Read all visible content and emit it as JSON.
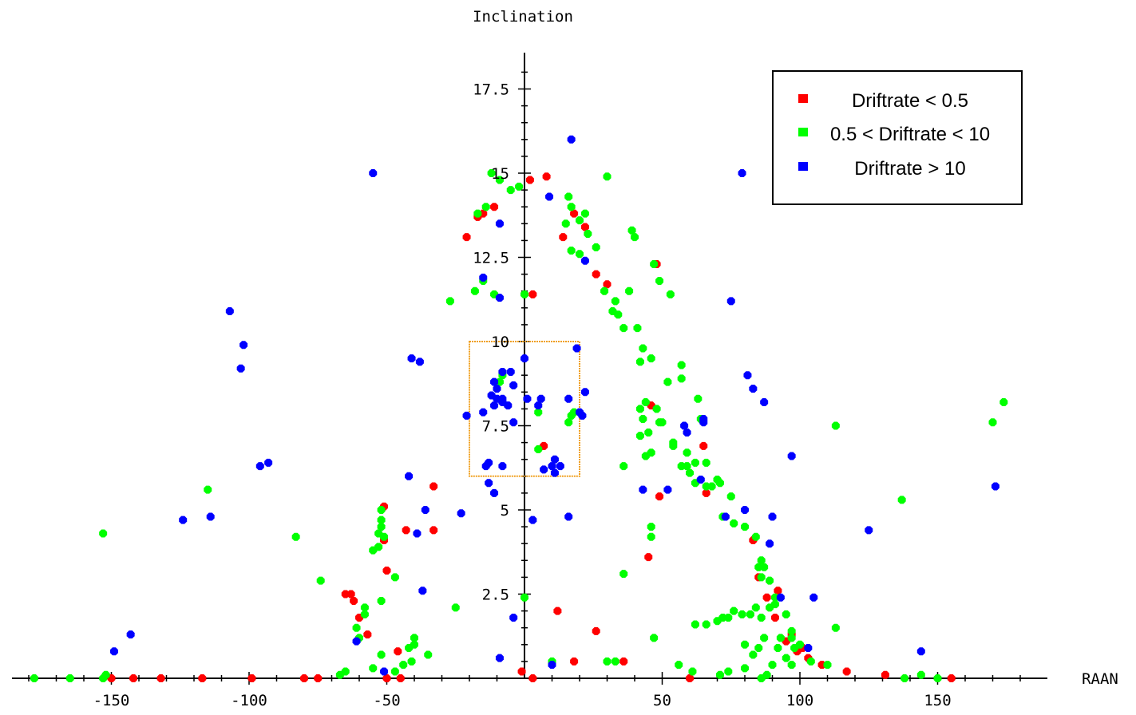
{
  "chart_data": {
    "type": "scatter",
    "title": "",
    "xlabel": "RAAN",
    "ylabel": "Inclination",
    "xlim": [
      -190,
      190
    ],
    "ylim": [
      0,
      18.5
    ],
    "x_ticks": [
      -150,
      -100,
      -50,
      50,
      100,
      150
    ],
    "y_ticks": [
      2.5,
      5,
      7.5,
      10,
      12.5,
      15,
      17.5
    ],
    "grid": false,
    "legend": "top-right",
    "highlight_box": {
      "x": [
        -20,
        20
      ],
      "y": [
        6,
        10
      ],
      "color": "#f0a020"
    },
    "series": [
      {
        "name": "Driftrate < 0.5",
        "color": "#ff0000",
        "points": [
          [
            -11,
            14
          ],
          [
            -15,
            13.8
          ],
          [
            -21,
            13.1
          ],
          [
            -17,
            13.7
          ],
          [
            2,
            14.8
          ],
          [
            8,
            14.9
          ],
          [
            3,
            11.4
          ],
          [
            18,
            13.8
          ],
          [
            14,
            13.1
          ],
          [
            22,
            13.4
          ],
          [
            26,
            12
          ],
          [
            30,
            11.7
          ],
          [
            48,
            12.3
          ],
          [
            46,
            8.1
          ],
          [
            49,
            5.4
          ],
          [
            65,
            6.9
          ],
          [
            66,
            5.5
          ],
          [
            83,
            4.1
          ],
          [
            85,
            3
          ],
          [
            88,
            2.4
          ],
          [
            92,
            2.6
          ],
          [
            91,
            1.8
          ],
          [
            95,
            1.1
          ],
          [
            97,
            1.3
          ],
          [
            99,
            0.8
          ],
          [
            101,
            0.9
          ],
          [
            103,
            0.6
          ],
          [
            108,
            0.4
          ],
          [
            117,
            0.2
          ],
          [
            131,
            0.1
          ],
          [
            155,
            0
          ],
          [
            7,
            6.9
          ],
          [
            12,
            2
          ],
          [
            26,
            1.4
          ],
          [
            18,
            0.5
          ],
          [
            36,
            0.5
          ],
          [
            45,
            3.6
          ],
          [
            -33,
            5.7
          ],
          [
            -33,
            4.4
          ],
          [
            -43,
            4.4
          ],
          [
            -51,
            5.1
          ],
          [
            -51,
            4.1
          ],
          [
            -50,
            3.2
          ],
          [
            -46,
            0.8
          ],
          [
            -57,
            1.3
          ],
          [
            -60,
            1.8
          ],
          [
            -63,
            2.5
          ],
          [
            -62,
            2.3
          ],
          [
            -65,
            2.5
          ],
          [
            -1,
            0.2
          ],
          [
            -150,
            0
          ],
          [
            -142,
            0
          ],
          [
            -132,
            0
          ],
          [
            -117,
            0
          ],
          [
            -99,
            0
          ],
          [
            -80,
            0
          ],
          [
            -75,
            0
          ],
          [
            -50,
            0
          ],
          [
            -45,
            0
          ],
          [
            3,
            0
          ],
          [
            60,
            0
          ]
        ]
      },
      {
        "name": "0.5 < Driftrate < 10",
        "color": "#00ff00",
        "points": [
          [
            -9,
            14.8
          ],
          [
            -5,
            14.5
          ],
          [
            -2,
            14.6
          ],
          [
            -14,
            14
          ],
          [
            -17,
            13.8
          ],
          [
            -11,
            11.4
          ],
          [
            -27,
            11.2
          ],
          [
            -18,
            11.5
          ],
          [
            -15,
            11.8
          ],
          [
            0,
            11.4
          ],
          [
            30,
            14.9
          ],
          [
            16,
            14.3
          ],
          [
            17,
            14
          ],
          [
            20,
            13.6
          ],
          [
            22,
            13.8
          ],
          [
            15,
            13.5
          ],
          [
            23,
            13.2
          ],
          [
            17,
            12.7
          ],
          [
            20,
            12.6
          ],
          [
            26,
            12.8
          ],
          [
            39,
            13.3
          ],
          [
            40,
            13.1
          ],
          [
            47,
            12.3
          ],
          [
            49,
            11.8
          ],
          [
            53,
            11.4
          ],
          [
            38,
            11.5
          ],
          [
            29,
            11.5
          ],
          [
            33,
            11.2
          ],
          [
            32,
            10.9
          ],
          [
            34,
            10.8
          ],
          [
            36,
            10.4
          ],
          [
            41,
            10.4
          ],
          [
            43,
            9.8
          ],
          [
            46,
            9.5
          ],
          [
            42,
            9.4
          ],
          [
            57,
            9.3
          ],
          [
            57,
            8.9
          ],
          [
            52,
            8.8
          ],
          [
            63,
            8.3
          ],
          [
            64,
            7.7
          ],
          [
            42,
            8
          ],
          [
            44,
            8.2
          ],
          [
            48,
            8
          ],
          [
            43,
            7.7
          ],
          [
            49,
            7.6
          ],
          [
            50,
            7.6
          ],
          [
            45,
            7.3
          ],
          [
            42,
            7.2
          ],
          [
            54,
            7
          ],
          [
            54,
            6.9
          ],
          [
            59,
            6.7
          ],
          [
            59,
            6.3
          ],
          [
            57,
            6.3
          ],
          [
            62,
            6.4
          ],
          [
            66,
            6.4
          ],
          [
            60,
            6.1
          ],
          [
            62,
            5.8
          ],
          [
            66,
            5.7
          ],
          [
            68,
            5.7
          ],
          [
            70,
            5.9
          ],
          [
            71,
            5.8
          ],
          [
            75,
            5.4
          ],
          [
            72,
            4.8
          ],
          [
            76,
            4.6
          ],
          [
            80,
            4.5
          ],
          [
            84,
            4.2
          ],
          [
            86,
            3.5
          ],
          [
            85,
            3.3
          ],
          [
            87,
            3.3
          ],
          [
            86,
            3
          ],
          [
            89,
            2.9
          ],
          [
            91,
            2.4
          ],
          [
            89,
            2.1
          ],
          [
            91,
            2.2
          ],
          [
            95,
            1.9
          ],
          [
            97,
            1.4
          ],
          [
            93,
            1.2
          ],
          [
            92,
            0.9
          ],
          [
            97,
            1.2
          ],
          [
            98,
            0.9
          ],
          [
            100,
            1
          ],
          [
            95,
            0.6
          ],
          [
            104,
            0.5
          ],
          [
            110,
            0.4
          ],
          [
            113,
            1.5
          ],
          [
            113,
            7.5
          ],
          [
            137,
            5.3
          ],
          [
            144,
            0.1
          ],
          [
            150,
            0
          ],
          [
            138,
            0
          ],
          [
            170,
            7.6
          ],
          [
            174,
            8.2
          ],
          [
            -8,
            9
          ],
          [
            -9,
            8.8
          ],
          [
            5,
            7.9
          ],
          [
            17,
            7.8
          ],
          [
            16,
            7.6
          ],
          [
            18,
            7.9
          ],
          [
            5,
            6.8
          ],
          [
            36,
            6.3
          ],
          [
            46,
            6.7
          ],
          [
            44,
            6.6
          ],
          [
            46,
            4.5
          ],
          [
            46,
            4.2
          ],
          [
            36,
            3.1
          ],
          [
            47,
            1.2
          ],
          [
            62,
            1.6
          ],
          [
            66,
            1.6
          ],
          [
            70,
            1.7
          ],
          [
            72,
            1.8
          ],
          [
            74,
            1.8
          ],
          [
            76,
            2
          ],
          [
            79,
            1.9
          ],
          [
            82,
            1.9
          ],
          [
            84,
            2.1
          ],
          [
            86,
            1.8
          ],
          [
            80,
            1
          ],
          [
            83,
            0.7
          ],
          [
            85,
            0.9
          ],
          [
            87,
            1.2
          ],
          [
            97,
            0.4
          ],
          [
            56,
            0.4
          ],
          [
            61,
            0.2
          ],
          [
            71,
            0.1
          ],
          [
            74,
            0.2
          ],
          [
            80,
            0.3
          ],
          [
            86,
            0
          ],
          [
            88,
            0.1
          ],
          [
            90,
            0.4
          ],
          [
            30,
            0.5
          ],
          [
            33,
            0.5
          ],
          [
            10,
            0.5
          ],
          [
            -52,
            5
          ],
          [
            -52,
            4.7
          ],
          [
            -53,
            4.3
          ],
          [
            -51,
            4.2
          ],
          [
            -52,
            4.5
          ],
          [
            -53,
            3.9
          ],
          [
            -55,
            3.8
          ],
          [
            -47,
            3
          ],
          [
            -52,
            2.3
          ],
          [
            -58,
            2.1
          ],
          [
            -58,
            1.9
          ],
          [
            -61,
            1.5
          ],
          [
            -60,
            1.2
          ],
          [
            -40,
            1.2
          ],
          [
            -40,
            1
          ],
          [
            -42,
            0.9
          ],
          [
            -35,
            0.7
          ],
          [
            -41,
            0.5
          ],
          [
            -44,
            0.4
          ],
          [
            -47,
            0.2
          ],
          [
            -52,
            0.7
          ],
          [
            -55,
            0.3
          ],
          [
            -65,
            0.2
          ],
          [
            -67,
            0.1
          ],
          [
            -25,
            2.1
          ],
          [
            -74,
            2.9
          ],
          [
            -83,
            4.2
          ],
          [
            -115,
            5.6
          ],
          [
            -153,
            4.3
          ],
          [
            -152,
            0.1
          ],
          [
            -153,
            0
          ],
          [
            -165,
            0
          ],
          [
            -178,
            0
          ],
          [
            0,
            2.4
          ],
          [
            -12,
            15
          ]
        ]
      },
      {
        "name": "Driftrate > 10",
        "color": "#0000ff",
        "points": [
          [
            -55,
            15
          ],
          [
            17,
            16
          ],
          [
            9,
            14.3
          ],
          [
            -9,
            13.5
          ],
          [
            -15,
            11.9
          ],
          [
            -9,
            11.3
          ],
          [
            22,
            12.4
          ],
          [
            -107,
            10.9
          ],
          [
            -102,
            9.9
          ],
          [
            -103,
            9.2
          ],
          [
            -41,
            9.5
          ],
          [
            -38,
            9.4
          ],
          [
            -93,
            6.4
          ],
          [
            -96,
            6.3
          ],
          [
            -124,
            4.7
          ],
          [
            -114,
            4.8
          ],
          [
            -42,
            6
          ],
          [
            -36,
            5
          ],
          [
            -39,
            4.3
          ],
          [
            -23,
            4.9
          ],
          [
            -13,
            5.8
          ],
          [
            -11,
            5.5
          ],
          [
            -37,
            2.6
          ],
          [
            -143,
            1.3
          ],
          [
            -149,
            0.8
          ],
          [
            -61,
            1.1
          ],
          [
            -51,
            0.2
          ],
          [
            -9,
            0.6
          ],
          [
            -4,
            1.8
          ],
          [
            -14,
            6.3
          ],
          [
            -13,
            6.4
          ],
          [
            -8,
            6.3
          ],
          [
            0,
            9.5
          ],
          [
            -11,
            8.8
          ],
          [
            -12,
            8.4
          ],
          [
            -10,
            8.3
          ],
          [
            -8,
            8.3
          ],
          [
            -11,
            8.1
          ],
          [
            -8,
            8.2
          ],
          [
            -10,
            8.6
          ],
          [
            -8,
            9.1
          ],
          [
            -5,
            9.1
          ],
          [
            -6,
            8.1
          ],
          [
            -15,
            7.9
          ],
          [
            -4,
            7.6
          ],
          [
            -21,
            7.8
          ],
          [
            1,
            8.3
          ],
          [
            5,
            8.1
          ],
          [
            6,
            8.3
          ],
          [
            -4,
            8.7
          ],
          [
            10,
            6.3
          ],
          [
            7,
            6.2
          ],
          [
            11,
            6.5
          ],
          [
            11,
            6.1
          ],
          [
            13,
            6.3
          ],
          [
            16,
            8.3
          ],
          [
            19,
            9.8
          ],
          [
            21,
            7.8
          ],
          [
            22,
            8.5
          ],
          [
            20,
            7.9
          ],
          [
            3,
            4.7
          ],
          [
            16,
            4.8
          ],
          [
            75,
            11.2
          ],
          [
            79,
            15
          ],
          [
            81,
            9
          ],
          [
            83,
            8.6
          ],
          [
            87,
            8.2
          ],
          [
            58,
            7.5
          ],
          [
            59,
            7.3
          ],
          [
            65,
            7.6
          ],
          [
            65,
            7.7
          ],
          [
            43,
            5.6
          ],
          [
            52,
            5.6
          ],
          [
            64,
            5.9
          ],
          [
            73,
            4.8
          ],
          [
            80,
            5
          ],
          [
            90,
            4.8
          ],
          [
            89,
            4
          ],
          [
            97,
            6.6
          ],
          [
            105,
            2.4
          ],
          [
            93,
            2.4
          ],
          [
            103,
            0.9
          ],
          [
            125,
            4.4
          ],
          [
            144,
            0.8
          ],
          [
            171,
            5.7
          ],
          [
            10,
            0.4
          ]
        ]
      }
    ]
  }
}
